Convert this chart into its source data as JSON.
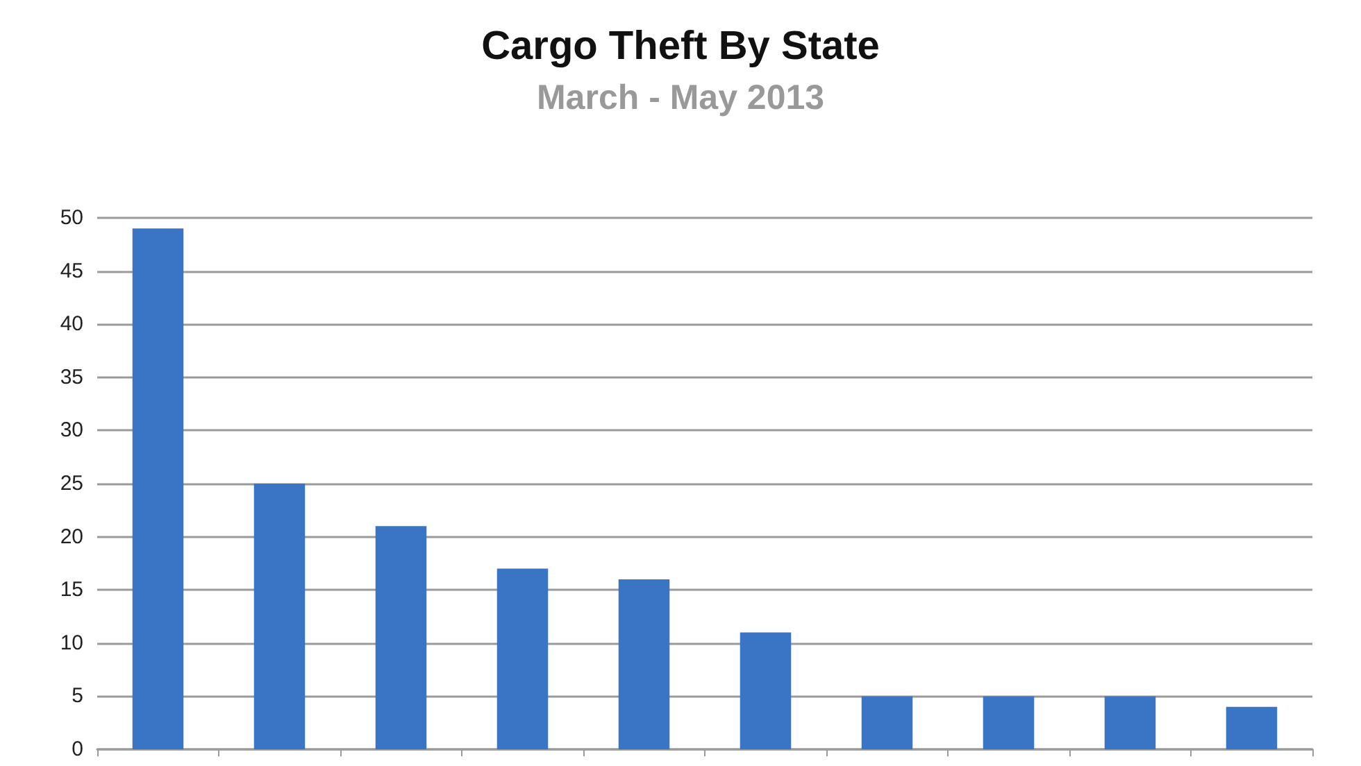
{
  "chart_data": {
    "type": "bar",
    "title": "Cargo Theft By State",
    "subtitle": "March - May 2013",
    "categories": [
      null,
      null,
      null,
      null,
      null,
      null,
      null,
      null,
      null,
      null
    ],
    "values": [
      49,
      25,
      21,
      17,
      16,
      11,
      5,
      5,
      5,
      4
    ],
    "color": "#3a74c4",
    "ylim": [
      0,
      50
    ],
    "yticks": [
      0,
      5,
      10,
      15,
      20,
      25,
      30,
      35,
      40,
      45,
      50
    ],
    "grid": "y"
  }
}
